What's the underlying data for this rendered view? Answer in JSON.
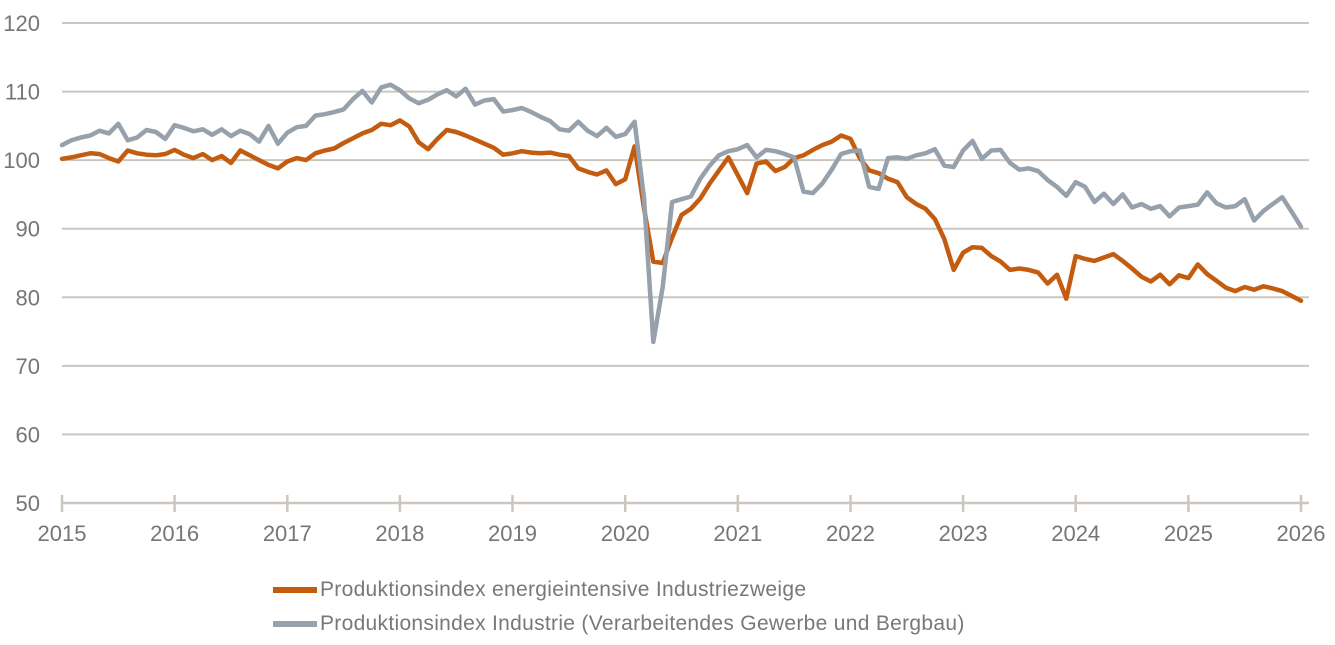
{
  "chart_data": {
    "type": "line",
    "title": "",
    "frequency": "monthly",
    "x_start": "2015-01",
    "x_end": "2026-01",
    "x_axis": {
      "ticks": [
        "2015",
        "2016",
        "2017",
        "2018",
        "2019",
        "2020",
        "2021",
        "2022",
        "2023",
        "2024",
        "2025",
        "2026"
      ]
    },
    "y_axis": {
      "ticks": [
        50,
        60,
        70,
        80,
        90,
        100,
        110,
        120
      ],
      "min": 50,
      "max": 120
    },
    "grid": "horizontal",
    "legend_position": "bottom-left",
    "series": [
      {
        "name": "Produktionsindex energieintensive Industriezweige",
        "color": "#c45c10",
        "values": [
          100.2,
          100.4,
          100.7,
          101.0,
          100.9,
          100.3,
          99.8,
          101.4,
          101.0,
          100.8,
          100.7,
          100.9,
          101.5,
          100.8,
          100.3,
          100.9,
          100.0,
          100.6,
          99.6,
          101.4,
          100.7,
          100.0,
          99.3,
          98.8,
          99.8,
          100.3,
          100.0,
          101.0,
          101.4,
          101.7,
          102.5,
          103.2,
          103.9,
          104.4,
          105.3,
          105.1,
          105.8,
          104.9,
          102.6,
          101.6,
          103.1,
          104.4,
          104.1,
          103.6,
          103.0,
          102.4,
          101.8,
          100.8,
          101.0,
          101.3,
          101.1,
          101.0,
          101.1,
          100.8,
          100.6,
          98.8,
          98.3,
          97.9,
          98.5,
          96.5,
          97.2,
          102.0,
          93.0,
          85.2,
          85.0,
          88.7,
          92.0,
          92.9,
          94.4,
          96.6,
          98.5,
          100.4,
          97.8,
          95.2,
          99.5,
          99.8,
          98.4,
          99.0,
          100.3,
          100.7,
          101.5,
          102.2,
          102.7,
          103.6,
          103.1,
          100.3,
          98.5,
          98.1,
          97.3,
          96.8,
          94.6,
          93.6,
          92.9,
          91.4,
          88.5,
          84.0,
          86.5,
          87.3,
          87.2,
          86.0,
          85.2,
          84.0,
          84.2,
          84.0,
          83.6,
          82.0,
          83.3,
          79.8,
          86.0,
          85.6,
          85.3,
          85.8,
          86.3,
          85.3,
          84.2,
          83.0,
          82.3,
          83.3,
          81.9,
          83.2,
          82.8,
          84.8,
          83.4,
          82.4,
          81.4,
          80.9,
          81.5,
          81.1,
          81.6,
          81.3,
          80.9,
          80.2,
          79.5
        ]
      },
      {
        "name": "Produktionsindex Industrie (Verarbeitendes Gewerbe und Bergbau)",
        "color": "#96a1ac",
        "values": [
          102.2,
          102.9,
          103.3,
          103.6,
          104.3,
          103.9,
          105.3,
          102.9,
          103.3,
          104.4,
          104.1,
          103.1,
          105.1,
          104.7,
          104.2,
          104.5,
          103.7,
          104.5,
          103.5,
          104.3,
          103.8,
          102.7,
          105.0,
          102.4,
          104.0,
          104.8,
          105.0,
          106.5,
          106.7,
          107.0,
          107.4,
          108.9,
          110.1,
          108.4,
          110.6,
          111.0,
          110.2,
          109.0,
          108.3,
          108.8,
          109.6,
          110.2,
          109.3,
          110.4,
          108.1,
          108.7,
          108.9,
          107.1,
          107.3,
          107.6,
          107.0,
          106.3,
          105.7,
          104.5,
          104.3,
          105.6,
          104.3,
          103.5,
          104.7,
          103.4,
          103.8,
          105.6,
          94.5,
          73.5,
          81.5,
          93.9,
          94.3,
          94.7,
          97.3,
          99.2,
          100.7,
          101.3,
          101.6,
          102.2,
          100.4,
          101.5,
          101.3,
          100.9,
          100.4,
          95.4,
          95.2,
          96.6,
          98.6,
          100.9,
          101.3,
          101.4,
          96.1,
          95.8,
          100.3,
          100.4,
          100.2,
          100.7,
          101.0,
          101.6,
          99.2,
          99.0,
          101.4,
          102.8,
          100.2,
          101.4,
          101.5,
          99.6,
          98.6,
          98.8,
          98.4,
          97.1,
          96.1,
          94.8,
          96.8,
          96.1,
          93.9,
          95.1,
          93.6,
          95.0,
          93.1,
          93.6,
          92.9,
          93.3,
          91.8,
          93.1,
          93.3,
          93.5,
          95.3,
          93.7,
          93.1,
          93.3,
          94.3,
          91.2,
          92.6,
          93.6,
          94.6,
          92.5,
          90.3
        ]
      }
    ]
  },
  "legend": {
    "items": [
      {
        "label": "Produktionsindex energieintensive Industriezweige"
      },
      {
        "label": "Produktionsindex Industrie (Verarbeitendes Gewerbe und Bergbau)"
      }
    ]
  },
  "colors": {
    "background": "#ffffff",
    "gridline": "#cbc7bf",
    "axis_text": "#767676",
    "legend_text": "#787878",
    "series_orange": "#c45c10",
    "series_gray": "#96a1ac"
  }
}
